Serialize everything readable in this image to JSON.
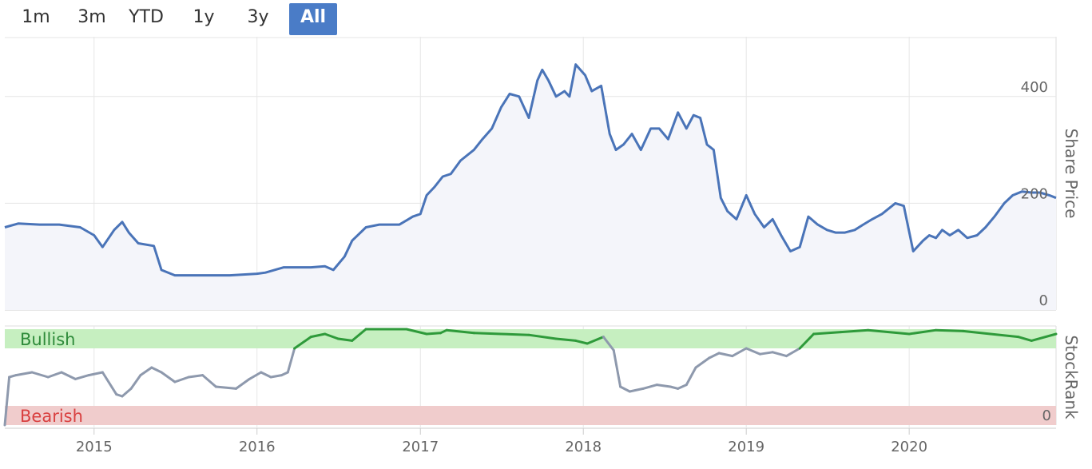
{
  "range_selector": {
    "buttons": [
      {
        "label": "1m",
        "active": false
      },
      {
        "label": "3m",
        "active": false
      },
      {
        "label": "YTD",
        "active": false
      },
      {
        "label": "1y",
        "active": false
      },
      {
        "label": "3y",
        "active": false
      },
      {
        "label": "All",
        "active": true
      }
    ]
  },
  "colors": {
    "price_line": "#4a74b8",
    "price_fill": "#f4f5fa",
    "rank_grey": "#8e99ad",
    "rank_green": "#2e9a3a",
    "rank_red": "#d94040",
    "bullish_band": "#c6efc0",
    "bearish_band": "#f0cccc",
    "bullish_text": "#2e8b3a",
    "bearish_text": "#d94040",
    "active_button": "#4a7cc7"
  },
  "chart_data": [
    {
      "type": "area",
      "ylabel": "Share Price",
      "ylim": [
        0,
        500
      ],
      "yticks": [
        "0",
        "200",
        "400"
      ],
      "grid": true,
      "xlim": [
        "2014-06-15",
        "2020-11-25"
      ],
      "x_ticks": [
        "2015",
        "2016",
        "2017",
        "2018",
        "2019",
        "2020"
      ],
      "series": [
        {
          "x": [
            "2014-06-15",
            "2014-07-15",
            "2014-09-01",
            "2014-10-15",
            "2014-12-01",
            "2015-01-01",
            "2015-01-20",
            "2015-02-15",
            "2015-03-05",
            "2015-03-20",
            "2015-04-10",
            "2015-05-15",
            "2015-06-01",
            "2015-07-01",
            "2015-09-01",
            "2015-11-01",
            "2016-01-01",
            "2016-01-20",
            "2016-03-01",
            "2016-05-01",
            "2016-06-01",
            "2016-06-20",
            "2016-07-15",
            "2016-08-01",
            "2016-09-01",
            "2016-10-01",
            "2016-11-15",
            "2016-12-15",
            "2017-01-01",
            "2017-01-15",
            "2017-02-01",
            "2017-02-20",
            "2017-03-10",
            "2017-04-01",
            "2017-05-01",
            "2017-05-20",
            "2017-06-10",
            "2017-07-01",
            "2017-07-20",
            "2017-08-10",
            "2017-09-01",
            "2017-09-20",
            "2017-10-01",
            "2017-10-15",
            "2017-11-01",
            "2017-11-20",
            "2017-12-01",
            "2017-12-15",
            "2018-01-05",
            "2018-01-20",
            "2018-02-10",
            "2018-03-01",
            "2018-03-15",
            "2018-04-01",
            "2018-04-20",
            "2018-05-10",
            "2018-06-01",
            "2018-06-20",
            "2018-07-10",
            "2018-08-01",
            "2018-08-20",
            "2018-09-05",
            "2018-09-20",
            "2018-10-05",
            "2018-10-20",
            "2018-11-05",
            "2018-11-20",
            "2018-12-10",
            "2019-01-01",
            "2019-01-20",
            "2019-02-10",
            "2019-03-01",
            "2019-03-20",
            "2019-04-10",
            "2019-05-01",
            "2019-05-20",
            "2019-06-10",
            "2019-07-01",
            "2019-07-20",
            "2019-08-10",
            "2019-09-01",
            "2019-09-20",
            "2019-10-10",
            "2019-11-01",
            "2019-12-01",
            "2019-12-20",
            "2020-01-10",
            "2020-02-01",
            "2020-02-15",
            "2020-03-01",
            "2020-03-15",
            "2020-04-01",
            "2020-04-20",
            "2020-05-10",
            "2020-06-01",
            "2020-06-20",
            "2020-07-10",
            "2020-08-01",
            "2020-08-20",
            "2020-09-10",
            "2020-10-01",
            "2020-10-20",
            "2020-11-10",
            "2020-11-25"
          ],
          "values": [
            155,
            162,
            160,
            160,
            155,
            140,
            118,
            150,
            165,
            145,
            125,
            120,
            75,
            65,
            65,
            65,
            68,
            70,
            80,
            80,
            82,
            75,
            100,
            130,
            155,
            160,
            160,
            175,
            180,
            215,
            230,
            250,
            255,
            280,
            300,
            320,
            340,
            380,
            405,
            400,
            360,
            430,
            450,
            430,
            400,
            410,
            400,
            460,
            440,
            410,
            420,
            330,
            300,
            310,
            330,
            300,
            340,
            340,
            320,
            370,
            340,
            365,
            360,
            310,
            300,
            210,
            185,
            170,
            215,
            180,
            155,
            170,
            140,
            110,
            118,
            175,
            160,
            150,
            145,
            145,
            150,
            160,
            170,
            180,
            200,
            195,
            110,
            130,
            140,
            135,
            150,
            140,
            150,
            135,
            140,
            155,
            175,
            200,
            215,
            222,
            220,
            220,
            215,
            210
          ]
        }
      ]
    },
    {
      "type": "line",
      "ylabel": "StockRank",
      "ylim": [
        0,
        100
      ],
      "yticks": [
        "0"
      ],
      "bands": [
        {
          "label": "Bullish",
          "from": 80,
          "to": 100
        },
        {
          "label": "Bearish",
          "from": 0,
          "to": 20
        }
      ],
      "xlim": [
        "2014-06-15",
        "2020-11-25"
      ],
      "x_ticks": [
        "2015",
        "2016",
        "2017",
        "2018",
        "2019",
        "2020"
      ],
      "series": [
        {
          "x": [
            "2014-06-15",
            "2014-06-25",
            "2014-07-10",
            "2014-08-15",
            "2014-09-20",
            "2014-10-20",
            "2014-11-20",
            "2014-12-20",
            "2015-01-20",
            "2015-02-20",
            "2015-03-05",
            "2015-03-25",
            "2015-04-15",
            "2015-05-10",
            "2015-06-01",
            "2015-07-01",
            "2015-08-01",
            "2015-09-01",
            "2015-10-01",
            "2015-11-15",
            "2015-12-15",
            "2016-01-10",
            "2016-02-01",
            "2016-02-25",
            "2016-03-10",
            "2016-03-25",
            "2016-05-01",
            "2016-06-01",
            "2016-07-01",
            "2016-08-01",
            "2016-09-01",
            "2016-10-01",
            "2016-12-01",
            "2017-01-15",
            "2017-02-15",
            "2017-03-01",
            "2017-05-01",
            "2017-07-01",
            "2017-09-01",
            "2017-11-01",
            "2017-12-15",
            "2018-01-10",
            "2018-02-15",
            "2018-03-10",
            "2018-03-25",
            "2018-04-15",
            "2018-05-15",
            "2018-06-15",
            "2018-07-15",
            "2018-08-01",
            "2018-08-20",
            "2018-09-10",
            "2018-10-10",
            "2018-11-01",
            "2018-12-01",
            "2019-01-01",
            "2019-02-01",
            "2019-03-01",
            "2019-04-01",
            "2019-05-01",
            "2019-06-01",
            "2019-08-01",
            "2019-10-01",
            "2020-01-01",
            "2020-03-01",
            "2020-05-01",
            "2020-07-01",
            "2020-09-01",
            "2020-10-01",
            "2020-11-25"
          ],
          "values": [
            0,
            50,
            52,
            55,
            50,
            55,
            48,
            52,
            55,
            32,
            30,
            38,
            52,
            60,
            55,
            45,
            50,
            52,
            40,
            38,
            48,
            55,
            50,
            52,
            55,
            80,
            92,
            95,
            90,
            88,
            100,
            100,
            100,
            95,
            96,
            99,
            96,
            95,
            94,
            90,
            88,
            85,
            92,
            78,
            40,
            35,
            38,
            42,
            40,
            38,
            42,
            60,
            70,
            75,
            72,
            80,
            74,
            76,
            72,
            80,
            95,
            97,
            99,
            95,
            99,
            98,
            95,
            92,
            88,
            95
          ]
        }
      ]
    }
  ]
}
